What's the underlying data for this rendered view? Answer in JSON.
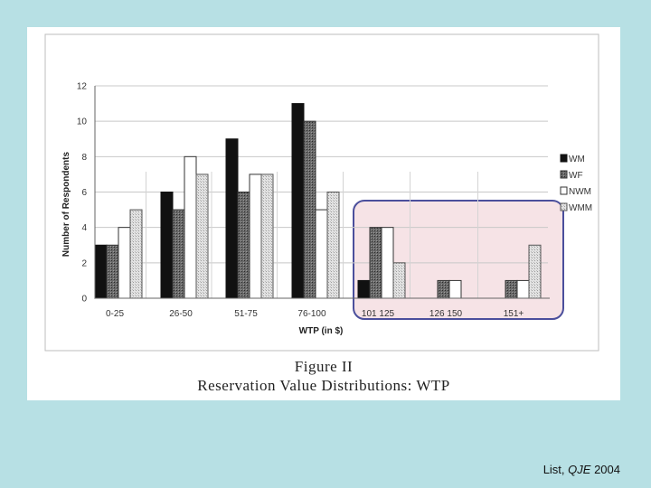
{
  "chart_data": {
    "type": "bar",
    "title": "",
    "xlabel": "WTP (in $)",
    "ylabel": "Number of Respondents",
    "ylim": [
      0,
      12
    ],
    "yticks": [
      "0",
      "2",
      "4",
      "6",
      "8",
      "10",
      "12"
    ],
    "categories": [
      "0-25",
      "26-50",
      "51-75",
      "76-100",
      "101 125",
      "126 150",
      "151+"
    ],
    "series": [
      {
        "name": "WM",
        "values": [
          3,
          6,
          9,
          11,
          1,
          0,
          0
        ]
      },
      {
        "name": "WF",
        "values": [
          3,
          5,
          6,
          10,
          4,
          1,
          1
        ]
      },
      {
        "name": "NWM",
        "values": [
          4,
          8,
          7,
          5,
          4,
          1,
          1
        ]
      },
      {
        "name": "WMM",
        "values": [
          5,
          7,
          7,
          6,
          2,
          0,
          3
        ]
      }
    ],
    "legend_position": "right",
    "highlight": {
      "categories": [
        "101 125",
        "126 150",
        "151+"
      ],
      "color": "#f6e3e6",
      "border": "#4b4f9c"
    }
  },
  "caption": {
    "figure_label": "Figure II",
    "title": "Reservation Value Distributions: WTP"
  },
  "credit": {
    "prefix": "List, ",
    "journal": "QJE",
    "year": " 2004"
  },
  "colors": {
    "background": "#b7e0e4",
    "WM": "#111111",
    "WF": "#555555",
    "NWM": "#ffffff",
    "WMM": "#d6d6d6"
  }
}
